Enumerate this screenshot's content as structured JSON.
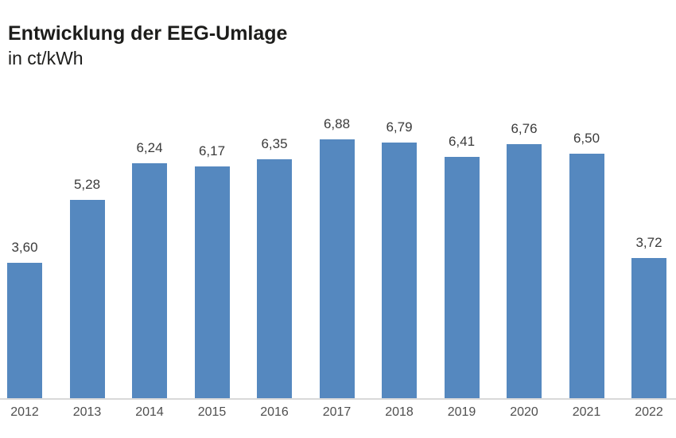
{
  "header": {
    "title": "Entwicklung der EEG-Umlage",
    "subtitle": "in ct/kWh"
  },
  "chart_data": {
    "type": "bar",
    "title": "Entwicklung der EEG-Umlage",
    "subtitle": "in ct/kWh",
    "unit": "ct/kWh",
    "categories": [
      "2012",
      "2013",
      "2014",
      "2015",
      "2016",
      "2017",
      "2018",
      "2019",
      "2020",
      "2021",
      "2022"
    ],
    "values": [
      3.6,
      5.28,
      6.24,
      6.17,
      6.35,
      6.88,
      6.79,
      6.41,
      6.76,
      6.5,
      3.72
    ],
    "value_labels": [
      "3,60",
      "5,28",
      "6,24",
      "6,17",
      "6,35",
      "6,88",
      "6,79",
      "6,41",
      "6,76",
      "6,50",
      "3,72"
    ],
    "xlabel": "",
    "ylabel": "ct/kWh",
    "ylim": [
      0,
      7.2
    ],
    "grid": false,
    "legend": false,
    "bar_color": "#5588BF",
    "axis_line_color": "#d9d9d9",
    "value_label_color": "#3b3b3b",
    "tick_label_color": "#4f4f4f",
    "title_color": "#1d1d1b"
  }
}
